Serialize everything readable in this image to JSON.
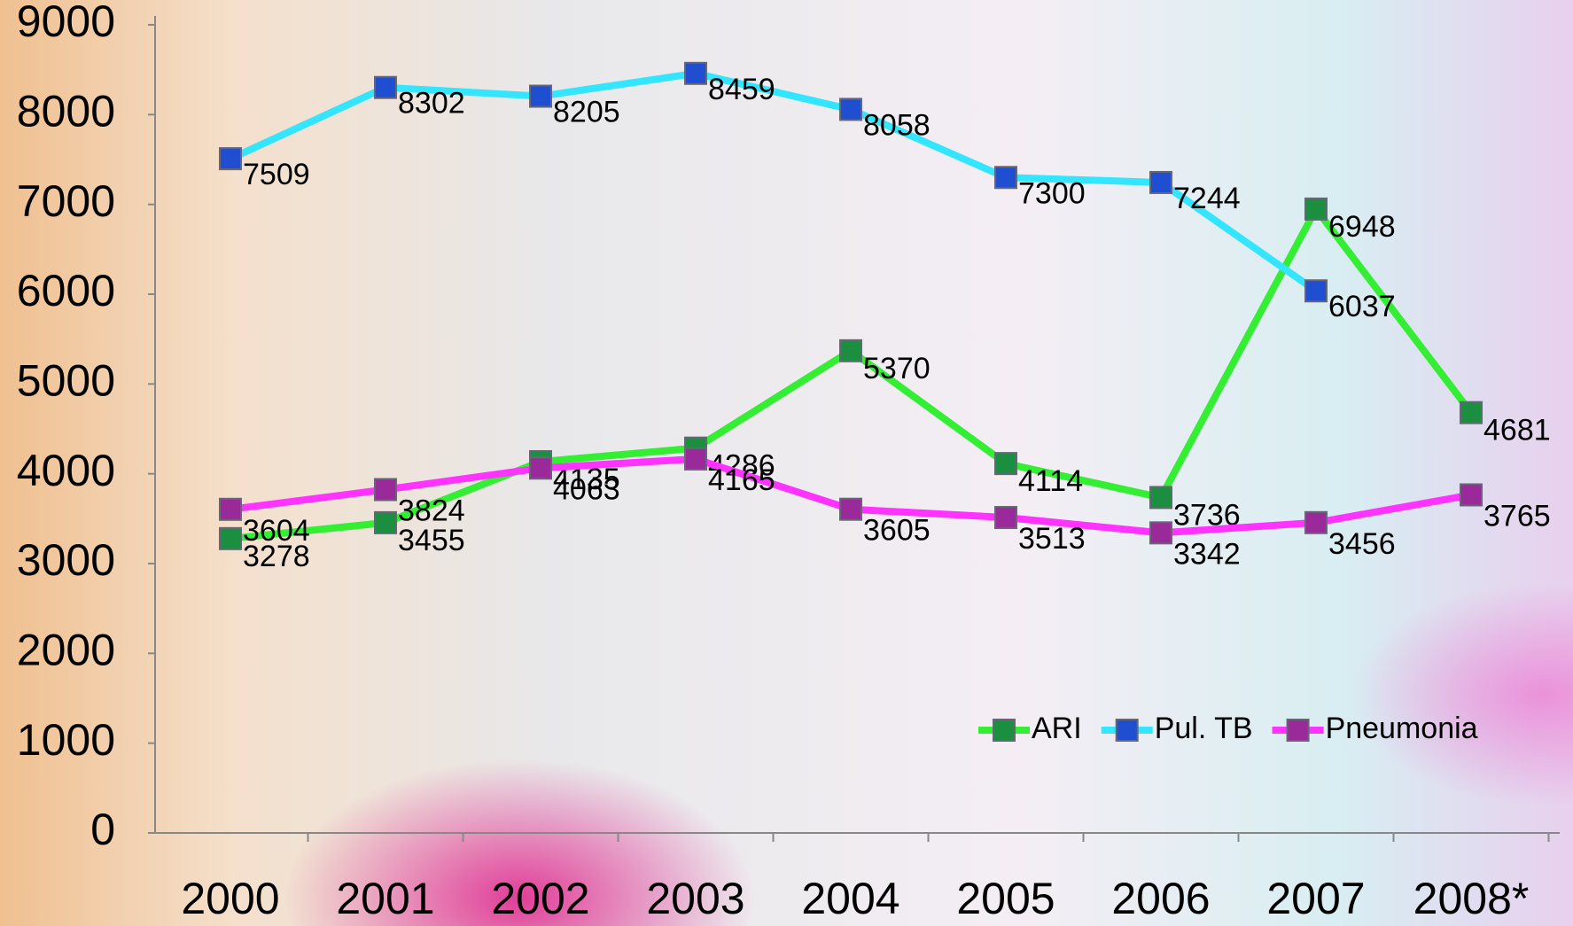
{
  "chart_data": {
    "type": "line",
    "categories": [
      "2000",
      "2001",
      "2002",
      "2003",
      "2004",
      "2005",
      "2006",
      "2007",
      "2008*"
    ],
    "series": [
      {
        "name": "ARI",
        "color": "#33ee33",
        "marker_color": "#1b8f3f",
        "values": [
          3278,
          3455,
          4135,
          4286,
          5370,
          4114,
          3736,
          6948,
          4681
        ]
      },
      {
        "name": "Pul. TB",
        "color": "#33e5ff",
        "marker_color": "#1f4fd0",
        "values": [
          7509,
          8302,
          8205,
          8459,
          8058,
          7300,
          7244,
          6037,
          null
        ]
      },
      {
        "name": "Pneumonia",
        "color": "#ff33ff",
        "marker_color": "#9a2a9a",
        "values": [
          3604,
          3824,
          4063,
          4165,
          3605,
          3513,
          3342,
          3456,
          3765
        ]
      }
    ],
    "ylim": [
      0,
      9000
    ],
    "yticks": [
      0,
      1000,
      2000,
      3000,
      4000,
      5000,
      6000,
      7000,
      8000,
      9000
    ],
    "grid": false,
    "legend": "bottom-right"
  }
}
